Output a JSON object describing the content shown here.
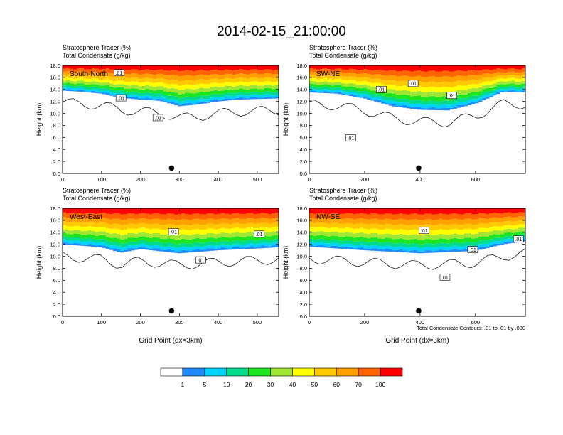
{
  "title": "2014-02-15_21:00:00",
  "footnote": "Total Condensate Contours: .01 to .01 by .000",
  "colorbar": {
    "colors": [
      "#ffffff",
      "#1e8cff",
      "#00d2ff",
      "#00dc8c",
      "#1ee61e",
      "#a0e632",
      "#ffff00",
      "#ffc800",
      "#ffa000",
      "#ff6400",
      "#ff0000"
    ],
    "labels": [
      "1",
      "5",
      "10",
      "20",
      "30",
      "40",
      "50",
      "60",
      "70",
      "100"
    ]
  },
  "chart_data": [
    {
      "type": "contour",
      "panel": "South-North",
      "subtitle_line1": "Stratosphere Tracer   (%)",
      "subtitle_line2": "Total Condensate   (g/kg)",
      "ylabel": "Height (km)",
      "xlabel": "",
      "xlim": [
        0,
        555
      ],
      "ylim": [
        0,
        18
      ],
      "xticks": [
        "0",
        "100",
        "200",
        "300",
        "400",
        "500"
      ],
      "xtick_values": [
        0,
        100,
        200,
        300,
        400,
        500
      ],
      "yticks": [
        "0.0",
        "2.0",
        "4.0",
        "6.0",
        "8.0",
        "10.0",
        "12.0",
        "14.0",
        "16.0",
        "18.0"
      ],
      "dot_x": 280,
      "contour_labels": [
        {
          "text": ".01",
          "x": 145,
          "y": 16.8
        },
        {
          "text": ".01",
          "x": 150,
          "y": 12.6
        },
        {
          "text": ".01",
          "x": 245,
          "y": 9.3
        }
      ],
      "tracer_bottom": [
        [
          0,
          13.8
        ],
        [
          50,
          13.6
        ],
        [
          100,
          13.3
        ],
        [
          150,
          12.6
        ],
        [
          200,
          12.3
        ],
        [
          250,
          12.1
        ],
        [
          300,
          11.2
        ],
        [
          350,
          11.5
        ],
        [
          400,
          12.0
        ],
        [
          450,
          12.3
        ],
        [
          500,
          12.4
        ],
        [
          555,
          12.5
        ]
      ]
    },
    {
      "type": "contour",
      "panel": "SW-NE",
      "subtitle_line1": "Stratosphere Tracer   (%)",
      "subtitle_line2": "Total Condensate   (g/kg)",
      "ylabel": "Height (km)",
      "xlabel": "",
      "xlim": [
        0,
        780
      ],
      "ylim": [
        0,
        18
      ],
      "xticks": [
        "0",
        "200",
        "400",
        "600"
      ],
      "xtick_values": [
        0,
        200,
        400,
        600
      ],
      "yticks": [
        "0.0",
        "2.0",
        "4.0",
        "6.0",
        "8.0",
        "10.0",
        "12.0",
        "14.0",
        "16.0",
        "18.0"
      ],
      "dot_x": 395,
      "contour_labels": [
        {
          "text": ".01",
          "x": 260,
          "y": 14.0
        },
        {
          "text": ".01",
          "x": 375,
          "y": 15.0
        },
        {
          "text": ".01",
          "x": 515,
          "y": 13.0
        },
        {
          "text": ".01",
          "x": 150,
          "y": 5.9
        }
      ],
      "tracer_bottom": [
        [
          0,
          13.5
        ],
        [
          100,
          13.3
        ],
        [
          200,
          12.5
        ],
        [
          300,
          11.2
        ],
        [
          400,
          10.6
        ],
        [
          500,
          10.5
        ],
        [
          600,
          11.6
        ],
        [
          700,
          13.6
        ],
        [
          780,
          13.5
        ]
      ]
    },
    {
      "type": "contour",
      "panel": "West-East",
      "subtitle_line1": "Stratosphere Tracer   (%)",
      "subtitle_line2": "Total Condensate   (g/kg)",
      "ylabel": "Height (km)",
      "xlabel": "Grid Point (dx=3km)",
      "xlim": [
        0,
        555
      ],
      "ylim": [
        0,
        18
      ],
      "xticks": [
        "0",
        "100",
        "200",
        "300",
        "400",
        "500"
      ],
      "xtick_values": [
        0,
        100,
        200,
        300,
        400,
        500
      ],
      "yticks": [
        "0.0",
        "2.0",
        "4.0",
        "6.0",
        "8.0",
        "10.0",
        "12.0",
        "14.0",
        "16.0",
        "18.0"
      ],
      "dot_x": 280,
      "contour_labels": [
        {
          "text": ".01",
          "x": 285,
          "y": 14.1
        },
        {
          "text": ".01",
          "x": 505,
          "y": 13.7
        },
        {
          "text": ".01",
          "x": 355,
          "y": 9.4
        }
      ],
      "tracer_bottom": [
        [
          0,
          12.0
        ],
        [
          100,
          11.5
        ],
        [
          150,
          10.6
        ],
        [
          200,
          11.2
        ],
        [
          300,
          10.5
        ],
        [
          400,
          11.0
        ],
        [
          500,
          11.3
        ],
        [
          555,
          11.5
        ]
      ]
    },
    {
      "type": "contour",
      "panel": "NW-SE",
      "subtitle_line1": "Stratosphere Tracer   (%)",
      "subtitle_line2": "Total Condensate   (g/kg)",
      "ylabel": "Height (km)",
      "xlabel": "Grid Point (dx=3km)",
      "xlim": [
        0,
        780
      ],
      "ylim": [
        0,
        18
      ],
      "xticks": [
        "0",
        "200",
        "400",
        "600"
      ],
      "xtick_values": [
        0,
        200,
        400,
        600
      ],
      "yticks": [
        "0.0",
        "2.0",
        "4.0",
        "6.0",
        "8.0",
        "10.0",
        "12.0",
        "14.0",
        "16.0",
        "18.0"
      ],
      "dot_x": 395,
      "contour_labels": [
        {
          "text": ".01",
          "x": 415,
          "y": 14.3
        },
        {
          "text": ".01",
          "x": 490,
          "y": 6.5
        },
        {
          "text": ".01",
          "x": 590,
          "y": 11.1
        },
        {
          "text": ".01",
          "x": 755,
          "y": 12.9
        }
      ],
      "tracer_bottom": [
        [
          0,
          11.6
        ],
        [
          200,
          11.0
        ],
        [
          400,
          10.5
        ],
        [
          600,
          10.9
        ],
        [
          700,
          12.0
        ],
        [
          780,
          12.5
        ]
      ]
    }
  ]
}
